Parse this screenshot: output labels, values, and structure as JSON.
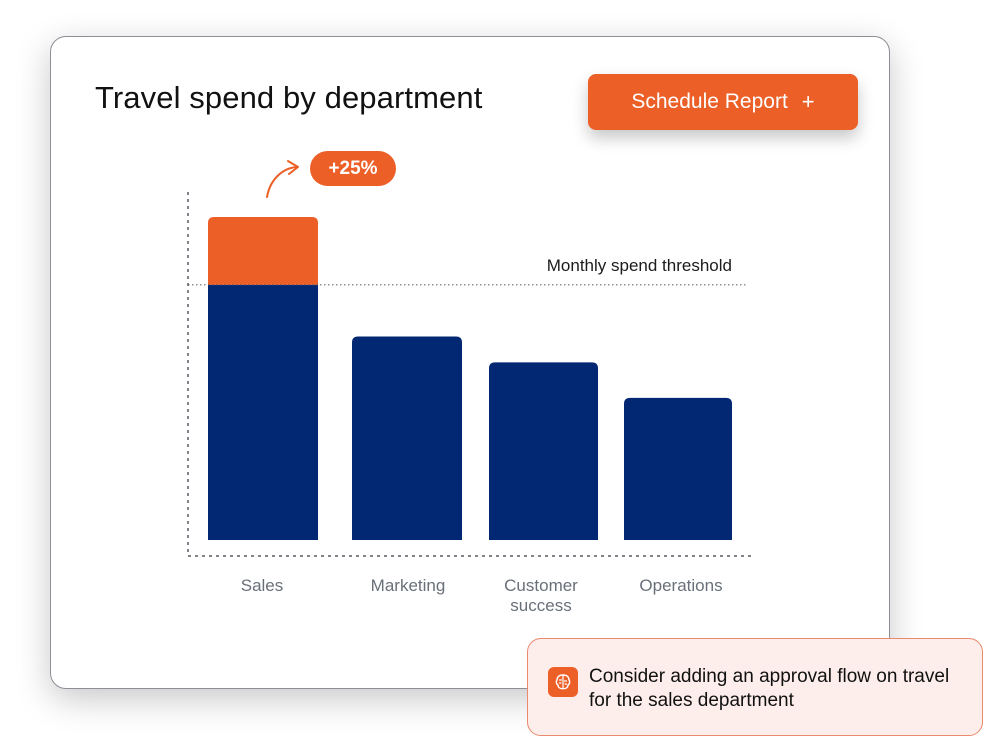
{
  "header": {
    "title": "Travel spend by department",
    "schedule_label": "Schedule Report",
    "schedule_icon": "plus-icon"
  },
  "colors": {
    "bar": "#022773",
    "over_threshold": "#ec5f27",
    "accent": "#ec5f27",
    "note_bg": "#fdeeec"
  },
  "chart_data": {
    "type": "bar",
    "title": "Travel spend by department",
    "xlabel": "",
    "ylabel": "",
    "categories": [
      "Sales",
      "Marketing",
      "Customer success",
      "Operations"
    ],
    "values": [
      100,
      63,
      55,
      44
    ],
    "ylim": [
      0,
      110
    ],
    "threshold": {
      "label": "Monthly spend threshold",
      "value": 79
    },
    "annotation": {
      "label": "+25%",
      "category": "Sales"
    },
    "grid": false,
    "legend": "none"
  },
  "insight": {
    "icon": "ai-brain-icon",
    "text": "Consider adding an approval flow on travel for the sales department"
  }
}
